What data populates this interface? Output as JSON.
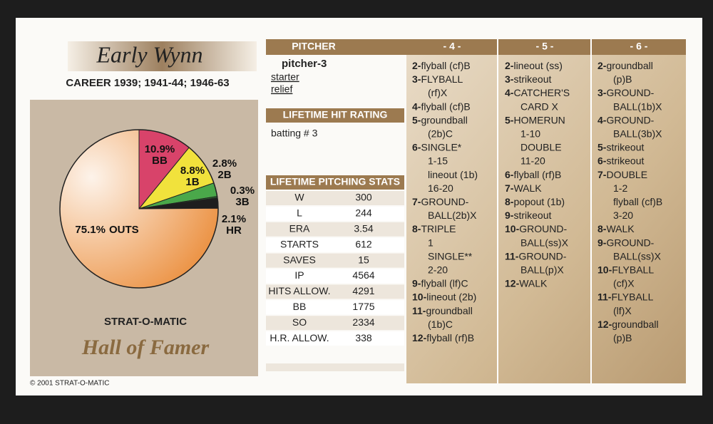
{
  "card": {
    "name": "Early Wynn",
    "career": "CAREER 1939; 1941-44; 1946-63",
    "brand": "STRAT-O-MATIC",
    "hall": "Hall of Famer",
    "copyright": "© 2001 STRAT-O-MATIC",
    "pitcher_header": "PITCHER",
    "pitcher_grade": "pitcher-3",
    "roles": [
      "starter",
      "relief"
    ],
    "hit_rating_header": "LIFETIME HIT RATING",
    "hit_rating": "batting # 3",
    "stats_header": "LIFETIME PITCHING STATS",
    "stats": [
      [
        "W",
        "300"
      ],
      [
        "L",
        "244"
      ],
      [
        "ERA",
        "3.54"
      ],
      [
        "STARTS",
        "612"
      ],
      [
        "SAVES",
        "15"
      ],
      [
        "IP",
        "4564"
      ],
      [
        "HITS ALLOW.",
        "4291"
      ],
      [
        "BB",
        "1775"
      ],
      [
        "SO",
        "2334"
      ],
      [
        "H.R. ALLOW.",
        "338"
      ]
    ],
    "columns": [
      {
        "header": "- 4 -",
        "lines": [
          {
            "num": "2-",
            "text": "flyball (cf)B"
          },
          {
            "num": "3-",
            "text": "FLYBALL"
          },
          {
            "text": "(rf)X"
          },
          {
            "num": "4-",
            "text": "flyball (cf)B"
          },
          {
            "num": "5-",
            "text": "groundball"
          },
          {
            "text": "(2b)C"
          },
          {
            "num": "6-",
            "text": "SINGLE*"
          },
          {
            "text": "1-15"
          },
          {
            "text": "lineout (1b)"
          },
          {
            "text": "16-20"
          },
          {
            "num": "7-",
            "text": "GROUND-"
          },
          {
            "text": "BALL(2b)X"
          },
          {
            "num": "8-",
            "text": "TRIPLE"
          },
          {
            "text": "1"
          },
          {
            "text": "SINGLE**"
          },
          {
            "text": "2-20"
          },
          {
            "num": "9-",
            "text": "flyball (lf)C"
          },
          {
            "num": "10-",
            "text": "lineout (2b)"
          },
          {
            "num": "11-",
            "text": "groundball"
          },
          {
            "text": "(1b)C"
          },
          {
            "num": "12-",
            "text": "flyball (rf)B"
          }
        ]
      },
      {
        "header": "- 5 -",
        "lines": [
          {
            "num": "2-",
            "text": "lineout (ss)"
          },
          {
            "num": "3-",
            "text": "strikeout"
          },
          {
            "num": "4-",
            "text": "CATCHER'S"
          },
          {
            "text": "CARD X"
          },
          {
            "num": "5-",
            "text": "HOMERUN"
          },
          {
            "text": "1-10"
          },
          {
            "text": "DOUBLE"
          },
          {
            "text": "11-20"
          },
          {
            "num": "6-",
            "text": "flyball (rf)B"
          },
          {
            "num": "7-",
            "text": "WALK"
          },
          {
            "num": "8-",
            "text": "popout (1b)"
          },
          {
            "num": "9-",
            "text": "strikeout"
          },
          {
            "num": "10-",
            "text": "GROUND-"
          },
          {
            "text": "BALL(ss)X"
          },
          {
            "num": "11-",
            "text": "GROUND-"
          },
          {
            "text": "BALL(p)X"
          },
          {
            "num": "12-",
            "text": "WALK"
          }
        ]
      },
      {
        "header": "- 6 -",
        "lines": [
          {
            "num": "2-",
            "text": "groundball"
          },
          {
            "text": "(p)B"
          },
          {
            "num": "3-",
            "text": "GROUND-"
          },
          {
            "text": "BALL(1b)X"
          },
          {
            "num": "4-",
            "text": "GROUND-"
          },
          {
            "text": "BALL(3b)X"
          },
          {
            "num": "5-",
            "text": "strikeout"
          },
          {
            "num": "6-",
            "text": "strikeout"
          },
          {
            "num": "7-",
            "text": "DOUBLE"
          },
          {
            "text": "1-2"
          },
          {
            "text": "flyball (cf)B"
          },
          {
            "text": "3-20"
          },
          {
            "num": "8-",
            "text": "WALK"
          },
          {
            "num": "9-",
            "text": "GROUND-"
          },
          {
            "text": "BALL(ss)X"
          },
          {
            "num": "10-",
            "text": "FLYBALL"
          },
          {
            "text": "(cf)X"
          },
          {
            "num": "11-",
            "text": "FLYBALL"
          },
          {
            "text": "(lf)X"
          },
          {
            "num": "12-",
            "text": "groundball"
          },
          {
            "text": "(p)B"
          }
        ]
      }
    ]
  },
  "chart_data": {
    "type": "pie",
    "categories": [
      "BB",
      "1B",
      "2B",
      "3B",
      "HR",
      "OUTS"
    ],
    "values": [
      10.9,
      8.8,
      2.8,
      0.3,
      2.1,
      75.1
    ],
    "value_labels": [
      "10.9%",
      "8.8%",
      "2.8%",
      "0.3%",
      "2.1%",
      "75.1%"
    ],
    "colors": [
      "#d8436a",
      "#f1e23c",
      "#4aa84a",
      "#2b6e2e",
      "#1e1e1e",
      "#f0a664"
    ]
  }
}
